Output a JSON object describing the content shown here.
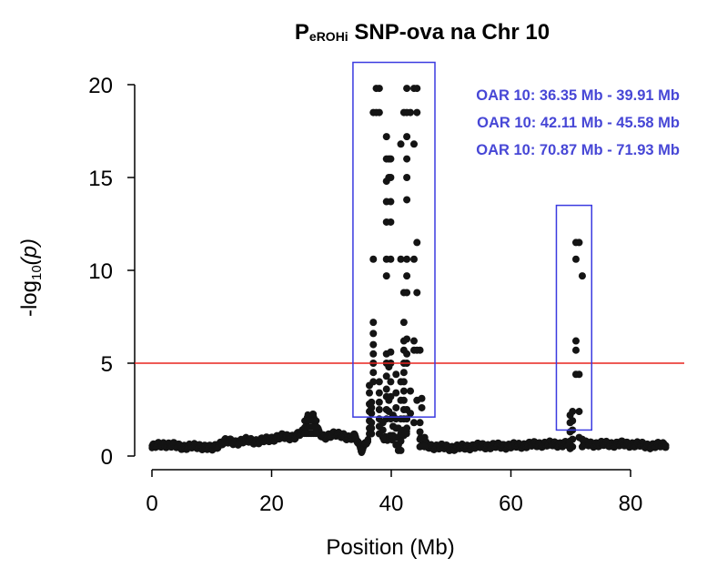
{
  "chart_data": {
    "type": "scatter",
    "title": {
      "prefix": "P",
      "subscript": "eROHi",
      "suffix": " SNP-ova na Chr 10"
    },
    "xlabel": "Position (Mb)",
    "ylabel": {
      "pre": "-log",
      "sub": "10",
      "post": "(p)"
    },
    "xlim": [
      -2,
      88
    ],
    "ylim": [
      0,
      21
    ],
    "x_ticks": [
      0,
      20,
      40,
      60,
      80
    ],
    "x_tick_labels": [
      "0",
      "20",
      "40",
      "60",
      "80"
    ],
    "y_ticks": [
      0,
      5,
      10,
      15,
      20
    ],
    "y_tick_labels": [
      "0",
      "5",
      "10",
      "15",
      "20"
    ],
    "grid": false,
    "threshold": {
      "value": 5,
      "color": "#e8231f"
    },
    "point_color": "#141414",
    "box_color": "#3a3ae0",
    "annotation_color": "#4747d6",
    "highlight_boxes": [
      {
        "x0": 33.6,
        "x1": 47.3,
        "y0": 2.1,
        "y1": 21.2
      },
      {
        "x0": 67.6,
        "x1": 73.5,
        "y0": 1.4,
        "y1": 13.5
      }
    ],
    "annotations": [
      "OAR 10: 36.35 Mb - 39.91 Mb",
      "OAR 10: 42.11 Mb - 45.58 Mb",
      "OAR 10: 70.87 Mb - 71.93 Mb"
    ],
    "baseline_profile": [
      [
        0.0,
        0.55
      ],
      [
        2.0,
        0.7
      ],
      [
        4.0,
        0.6
      ],
      [
        6.0,
        0.55
      ],
      [
        8.0,
        0.6
      ],
      [
        10.0,
        0.45
      ],
      [
        12.0,
        0.85
      ],
      [
        14.0,
        0.8
      ],
      [
        16.0,
        0.9
      ],
      [
        18.0,
        0.85
      ],
      [
        20.0,
        1.0
      ],
      [
        22.0,
        1.1
      ],
      [
        24.0,
        1.1
      ],
      [
        25.5,
        1.4
      ],
      [
        26.0,
        2.2
      ],
      [
        27.0,
        2.2
      ],
      [
        27.5,
        1.5
      ],
      [
        28.5,
        1.1
      ],
      [
        30.0,
        1.2
      ],
      [
        32.0,
        1.2
      ],
      [
        33.0,
        1.0
      ],
      [
        34.0,
        1.1
      ],
      [
        35.0,
        0.4
      ],
      [
        36.0,
        0.9
      ],
      [
        40.0,
        1.0
      ],
      [
        43.0,
        1.3
      ],
      [
        44.0,
        1.2
      ],
      [
        46.0,
        0.6
      ],
      [
        50.0,
        0.5
      ],
      [
        55.0,
        0.6
      ],
      [
        60.0,
        0.6
      ],
      [
        65.0,
        0.7
      ],
      [
        70.0,
        0.7
      ],
      [
        75.0,
        0.7
      ],
      [
        80.0,
        0.7
      ],
      [
        84.0,
        0.6
      ],
      [
        86.0,
        0.7
      ]
    ],
    "baseline_gaps": [
      [
        36.2,
        38.7
      ],
      [
        40.3,
        42.0
      ],
      [
        42.6,
        44.8
      ],
      [
        69.9,
        72.0
      ]
    ],
    "peak_points": [
      {
        "x": 36.35,
        "y": [
          1.2,
          1.5,
          1.9,
          2.4,
          2.8,
          3.4,
          3.8
        ]
      },
      {
        "x": 36.7,
        "y": [
          1.2,
          1.5,
          1.8,
          2.3,
          2.6,
          2.9
        ]
      },
      {
        "x": 37.0,
        "y": [
          4.0,
          4.5,
          5.0,
          5.5,
          6.0,
          6.6,
          7.2,
          10.6,
          18.5
        ]
      },
      {
        "x": 37.5,
        "y": [
          18.5,
          19.8
        ]
      },
      {
        "x": 38.0,
        "y": [
          1.2,
          1.6,
          2.0,
          2.5,
          2.9,
          3.4,
          4.0,
          18.5,
          19.8
        ]
      },
      {
        "x": 38.6,
        "y": [
          1.0,
          1.4,
          1.8
        ]
      },
      {
        "x": 39.2,
        "y": [
          2.0,
          2.5,
          3.2,
          3.6,
          4.3,
          5.0,
          5.5,
          9.7,
          10.6,
          12.6,
          13.7,
          14.8,
          16.0,
          17.2
        ]
      },
      {
        "x": 39.6,
        "y": [
          2.4,
          3.0,
          4.8,
          15.0,
          16.0
        ]
      },
      {
        "x": 39.91,
        "y": [
          2.0,
          3.2,
          4.0,
          5.0,
          5.6,
          10.6,
          12.6,
          13.7,
          15.0,
          16.0
        ]
      },
      {
        "x": 40.3,
        "y": [
          1.1,
          1.6,
          2.2
        ]
      },
      {
        "x": 40.8,
        "y": [
          0.6,
          1.0,
          1.5,
          2.0,
          2.6,
          3.4,
          4.4
        ]
      },
      {
        "x": 41.2,
        "y": [
          0.3,
          0.6,
          1.0,
          1.5
        ]
      },
      {
        "x": 41.6,
        "y": [
          0.3,
          0.8,
          1.2,
          2.0,
          3.0,
          4.0,
          10.6,
          16.8
        ]
      },
      {
        "x": 42.11,
        "y": [
          1.4,
          2.0,
          2.5,
          3.0,
          3.5,
          4.0,
          4.5,
          5.0,
          5.7,
          6.2,
          7.2,
          8.8,
          18.5
        ]
      },
      {
        "x": 42.6,
        "y": [
          1.5,
          2.0,
          2.5,
          5.0,
          5.5,
          6.3,
          8.8,
          9.7,
          10.6,
          13.8,
          15.0,
          16.0,
          17.2,
          18.5,
          19.8
        ]
      },
      {
        "x": 43.2,
        "y": [
          2.3,
          3.5,
          18.5
        ]
      },
      {
        "x": 43.8,
        "y": [
          1.8,
          5.7,
          6.2,
          10.6,
          16.8,
          19.8
        ]
      },
      {
        "x": 44.3,
        "y": [
          3.0,
          5.7,
          8.8,
          11.5,
          18.5,
          19.8
        ]
      },
      {
        "x": 44.8,
        "y": [
          0.5,
          0.9,
          1.3,
          1.8,
          5.7
        ]
      },
      {
        "x": 45.1,
        "y": [
          2.6,
          3.1
        ]
      },
      {
        "x": 45.58,
        "y": [
          0.5,
          1.0
        ]
      },
      {
        "x": 69.9,
        "y": [
          0.4,
          0.8,
          1.3,
          1.8,
          2.2
        ]
      },
      {
        "x": 70.3,
        "y": [
          0.5,
          0.9,
          1.4,
          1.9,
          2.4
        ]
      },
      {
        "x": 70.87,
        "y": [
          4.4,
          5.7,
          6.2,
          10.6,
          11.5
        ]
      },
      {
        "x": 71.4,
        "y": [
          1.0,
          2.4,
          4.4,
          11.5
        ]
      },
      {
        "x": 71.93,
        "y": [
          0.5,
          0.9,
          9.7
        ]
      }
    ]
  }
}
